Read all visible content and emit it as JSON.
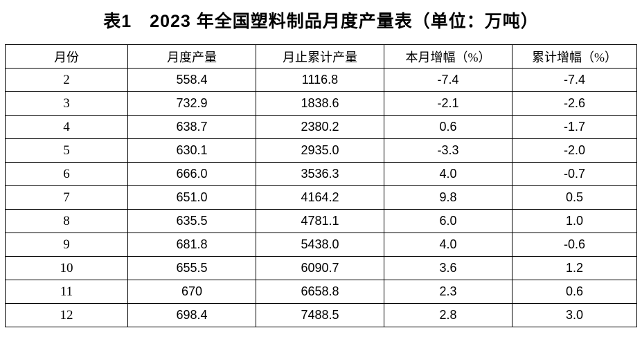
{
  "title": "表1　2023 年全国塑料制品月度产量表（单位：万吨）",
  "table": {
    "headers": [
      "月份",
      "月度产量",
      "月止累计产量",
      "本月增幅（%）",
      "累计增幅（%）"
    ],
    "rows": [
      [
        "2",
        "558.4",
        "1116.8",
        "-7.4",
        "-7.4"
      ],
      [
        "3",
        "732.9",
        "1838.6",
        "-2.1",
        "-2.6"
      ],
      [
        "4",
        "638.7",
        "2380.2",
        "0.6",
        "-1.7"
      ],
      [
        "5",
        "630.1",
        "2935.0",
        "-3.3",
        "-2.0"
      ],
      [
        "6",
        "666.0",
        "3536.3",
        "4.0",
        "-0.7"
      ],
      [
        "7",
        "651.0",
        "4164.2",
        "9.8",
        "0.5"
      ],
      [
        "8",
        "635.5",
        "4781.1",
        "6.0",
        "1.0"
      ],
      [
        "9",
        "681.8",
        "5438.0",
        "4.0",
        "-0.6"
      ],
      [
        "10",
        "655.5",
        "6090.7",
        "3.6",
        "1.2"
      ],
      [
        "11",
        "670",
        "6658.8",
        "2.3",
        "0.6"
      ],
      [
        "12",
        "698.4",
        "7488.5",
        "2.8",
        "3.0"
      ]
    ]
  },
  "chart_data": {
    "type": "table",
    "title": "表1 2023年全国塑料制品月度产量表（单位：万吨）",
    "unit": "万吨",
    "columns": [
      "月份",
      "月度产量",
      "月止累计产量",
      "本月增幅（%）",
      "累计增幅（%）"
    ],
    "categories": [
      2,
      3,
      4,
      5,
      6,
      7,
      8,
      9,
      10,
      11,
      12
    ],
    "series": [
      {
        "name": "月度产量",
        "values": [
          558.4,
          732.9,
          638.7,
          630.1,
          666.0,
          651.0,
          635.5,
          681.8,
          655.5,
          670,
          698.4
        ]
      },
      {
        "name": "月止累计产量",
        "values": [
          1116.8,
          1838.6,
          2380.2,
          2935.0,
          3536.3,
          4164.2,
          4781.1,
          5438.0,
          6090.7,
          6658.8,
          7488.5
        ]
      },
      {
        "name": "本月增幅（%）",
        "values": [
          -7.4,
          -2.1,
          0.6,
          -3.3,
          4.0,
          9.8,
          6.0,
          4.0,
          3.6,
          2.3,
          2.8
        ]
      },
      {
        "name": "累计增幅（%）",
        "values": [
          -7.4,
          -2.6,
          -1.7,
          -2.0,
          -0.7,
          0.5,
          1.0,
          -0.6,
          1.2,
          0.6,
          3.0
        ]
      }
    ]
  }
}
